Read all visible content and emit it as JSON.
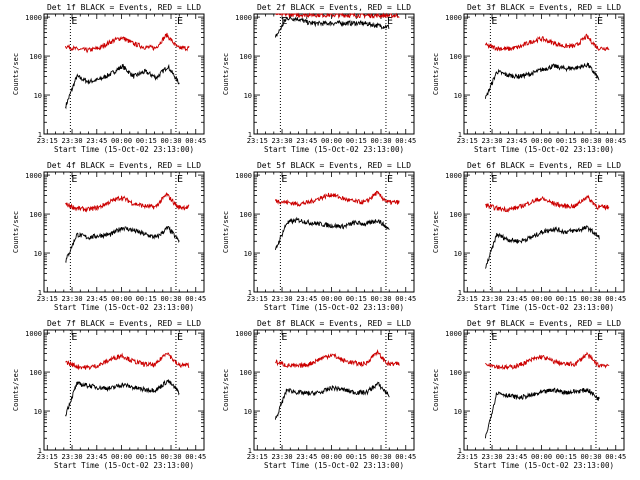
{
  "chart_data": [
    {
      "type": "line",
      "title": "Det 1f BLACK = Events, RED = LLD",
      "ylabel": "Counts/sec",
      "xlabel": "Start Time (15-Oct-02 23:13:00)",
      "x_ticks": [
        "23:15",
        "23:30",
        "23:45",
        "00:00",
        "00:15",
        "00:30",
        "00:45"
      ],
      "y_ticks": [
        "1",
        "10",
        "100",
        "1000"
      ],
      "ylim": [
        1,
        1200
      ],
      "yscale": "log",
      "markers": [
        {
          "label": "E",
          "time": "23:29"
        },
        {
          "label": "E",
          "time": "00:33"
        }
      ],
      "series": [
        {
          "color": "#000000",
          "start": "23:26",
          "end": "00:35",
          "levels": [
            5,
            30,
            22,
            25,
            35,
            55,
            30,
            40,
            28,
            55,
            20
          ]
        },
        {
          "color": "#cc0000",
          "start": "23:26",
          "end": "00:41",
          "levels": [
            180,
            150,
            140,
            160,
            230,
            300,
            210,
            170,
            160,
            350,
            160,
            160
          ]
        }
      ]
    },
    {
      "type": "line",
      "title": "Det 2f BLACK = Events, RED = LLD",
      "ylabel": "Counts/sec",
      "xlabel": "Start Time (15-Oct-02 23:13:00)",
      "x_ticks": [
        "23:15",
        "23:30",
        "23:45",
        "00:00",
        "00:15",
        "00:30",
        "00:45"
      ],
      "y_ticks": [
        "1",
        "10",
        "100",
        "1000"
      ],
      "ylim": [
        1,
        1200
      ],
      "yscale": "log",
      "markers": [
        {
          "label": "E",
          "time": "23:29"
        },
        {
          "label": "E",
          "time": "00:33"
        }
      ],
      "series": [
        {
          "color": "#000000",
          "start": "23:26",
          "end": "00:35",
          "levels": [
            300,
            950,
            900,
            700,
            680,
            700,
            700,
            700,
            680,
            600,
            560
          ]
        },
        {
          "color": "#cc0000",
          "start": "23:26",
          "end": "00:41",
          "levels": [
            1200,
            1180,
            1150,
            1150,
            1140,
            1130,
            1120,
            1110,
            1100,
            1100,
            1100
          ]
        }
      ]
    },
    {
      "type": "line",
      "title": "Det 3f BLACK = Events, RED = LLD",
      "ylabel": "Counts/sec",
      "xlabel": "Start Time (15-Oct-02 23:13:00)",
      "x_ticks": [
        "23:15",
        "23:30",
        "23:45",
        "00:00",
        "00:15",
        "00:30",
        "00:45"
      ],
      "y_ticks": [
        "1",
        "10",
        "100",
        "1000"
      ],
      "ylim": [
        1,
        1200
      ],
      "yscale": "log",
      "markers": [
        {
          "label": "E",
          "time": "23:29"
        },
        {
          "label": "E",
          "time": "00:33"
        }
      ],
      "series": [
        {
          "color": "#000000",
          "start": "23:26",
          "end": "00:35",
          "levels": [
            8,
            40,
            32,
            30,
            35,
            45,
            55,
            48,
            50,
            60,
            25
          ]
        },
        {
          "color": "#cc0000",
          "start": "23:26",
          "end": "00:41",
          "levels": [
            190,
            160,
            150,
            170,
            230,
            280,
            220,
            180,
            180,
            320,
            160,
            160
          ]
        }
      ]
    },
    {
      "type": "line",
      "title": "Det 4f BLACK = Events, RED = LLD",
      "ylabel": "Counts/sec",
      "xlabel": "Start Time (15-Oct-02 23:13:00)",
      "x_ticks": [
        "23:15",
        "23:30",
        "23:45",
        "00:00",
        "00:15",
        "00:30",
        "00:45"
      ],
      "y_ticks": [
        "1",
        "10",
        "100",
        "1000"
      ],
      "ylim": [
        1,
        1200
      ],
      "yscale": "log",
      "markers": [
        {
          "label": "E",
          "time": "23:29"
        },
        {
          "label": "E",
          "time": "00:33"
        }
      ],
      "series": [
        {
          "color": "#000000",
          "start": "23:26",
          "end": "00:35",
          "levels": [
            6,
            30,
            25,
            28,
            30,
            45,
            38,
            30,
            25,
            45,
            20
          ]
        },
        {
          "color": "#cc0000",
          "start": "23:26",
          "end": "00:41",
          "levels": [
            180,
            140,
            130,
            150,
            210,
            270,
            190,
            160,
            150,
            320,
            150,
            150
          ]
        }
      ]
    },
    {
      "type": "line",
      "title": "Det 5f BLACK = Events, RED = LLD",
      "ylabel": "Counts/sec",
      "xlabel": "Start Time (15-Oct-02 23:13:00)",
      "x_ticks": [
        "23:15",
        "23:30",
        "23:45",
        "00:00",
        "00:15",
        "00:30",
        "00:45"
      ],
      "y_ticks": [
        "1",
        "10",
        "100",
        "1000"
      ],
      "ylim": [
        1,
        1200
      ],
      "yscale": "log",
      "markers": [
        {
          "label": "E",
          "time": "23:29"
        },
        {
          "label": "E",
          "time": "00:33"
        }
      ],
      "series": [
        {
          "color": "#000000",
          "start": "23:26",
          "end": "00:35",
          "levels": [
            12,
            60,
            70,
            60,
            55,
            50,
            48,
            60,
            55,
            70,
            40
          ]
        },
        {
          "color": "#cc0000",
          "start": "23:26",
          "end": "00:41",
          "levels": [
            220,
            200,
            180,
            200,
            260,
            320,
            250,
            210,
            200,
            350,
            200,
            200
          ]
        }
      ]
    },
    {
      "type": "line",
      "title": "Det 6f BLACK = Events, RED = LLD",
      "ylabel": "Counts/sec",
      "xlabel": "Start Time (15-Oct-02 23:13:00)",
      "x_ticks": [
        "23:15",
        "23:30",
        "23:45",
        "00:00",
        "00:15",
        "00:30",
        "00:45"
      ],
      "y_ticks": [
        "1",
        "10",
        "100",
        "1000"
      ],
      "ylim": [
        1,
        1200
      ],
      "yscale": "log",
      "markers": [
        {
          "label": "E",
          "time": "23:29"
        },
        {
          "label": "E",
          "time": "00:33"
        }
      ],
      "series": [
        {
          "color": "#000000",
          "start": "23:26",
          "end": "00:35",
          "levels": [
            4,
            30,
            22,
            20,
            25,
            35,
            42,
            35,
            38,
            45,
            25
          ]
        },
        {
          "color": "#cc0000",
          "start": "23:26",
          "end": "00:41",
          "levels": [
            170,
            140,
            130,
            150,
            200,
            250,
            190,
            160,
            160,
            280,
            150,
            150
          ]
        }
      ]
    },
    {
      "type": "line",
      "title": "Det 7f BLACK = Events, RED = LLD",
      "ylabel": "Counts/sec",
      "xlabel": "Start Time (15-Oct-02 23:13:00)",
      "x_ticks": [
        "23:15",
        "23:30",
        "23:45",
        "00:00",
        "00:15",
        "00:30",
        "00:45"
      ],
      "y_ticks": [
        "1",
        "10",
        "100",
        "1000"
      ],
      "ylim": [
        1,
        1200
      ],
      "yscale": "log",
      "markers": [
        {
          "label": "E",
          "time": "23:29"
        },
        {
          "label": "E",
          "time": "00:33"
        }
      ],
      "series": [
        {
          "color": "#000000",
          "start": "23:26",
          "end": "00:35",
          "levels": [
            8,
            50,
            45,
            40,
            38,
            48,
            40,
            35,
            35,
            60,
            30
          ]
        },
        {
          "color": "#cc0000",
          "start": "23:26",
          "end": "00:41",
          "levels": [
            180,
            140,
            130,
            150,
            210,
            270,
            190,
            160,
            150,
            330,
            150,
            150
          ]
        }
      ]
    },
    {
      "type": "line",
      "title": "Det 8f BLACK = Events, RED = LLD",
      "ylabel": "Counts/sec",
      "xlabel": "Start Time (15-Oct-02 23:13:00)",
      "x_ticks": [
        "23:15",
        "23:30",
        "23:45",
        "00:00",
        "00:15",
        "00:30",
        "00:45"
      ],
      "y_ticks": [
        "1",
        "10",
        "100",
        "1000"
      ],
      "ylim": [
        1,
        1200
      ],
      "yscale": "log",
      "markers": [
        {
          "label": "E",
          "time": "23:29"
        },
        {
          "label": "E",
          "time": "00:33"
        }
      ],
      "series": [
        {
          "color": "#000000",
          "start": "23:26",
          "end": "00:35",
          "levels": [
            6,
            35,
            30,
            28,
            30,
            40,
            35,
            30,
            30,
            50,
            25
          ]
        },
        {
          "color": "#cc0000",
          "start": "23:26",
          "end": "00:41",
          "levels": [
            180,
            150,
            140,
            160,
            220,
            280,
            200,
            170,
            160,
            330,
            160,
            160
          ]
        }
      ]
    },
    {
      "type": "line",
      "title": "Det 9f BLACK = Events, RED = LLD",
      "ylabel": "Counts/sec",
      "xlabel": "Start Time (15-Oct-02 23:13:00)",
      "x_ticks": [
        "23:15",
        "23:30",
        "23:45",
        "00:00",
        "00:15",
        "00:30",
        "00:45"
      ],
      "y_ticks": [
        "1",
        "10",
        "100",
        "1000"
      ],
      "ylim": [
        1,
        1200
      ],
      "yscale": "log",
      "markers": [
        {
          "label": "E",
          "time": "23:29"
        },
        {
          "label": "E",
          "time": "00:33"
        }
      ],
      "series": [
        {
          "color": "#000000",
          "start": "23:26",
          "end": "00:35",
          "levels": [
            2,
            30,
            25,
            22,
            25,
            30,
            35,
            30,
            32,
            35,
            20
          ]
        },
        {
          "color": "#cc0000",
          "start": "23:26",
          "end": "00:41",
          "levels": [
            170,
            140,
            130,
            150,
            200,
            250,
            190,
            160,
            160,
            290,
            150,
            150
          ]
        }
      ]
    }
  ]
}
